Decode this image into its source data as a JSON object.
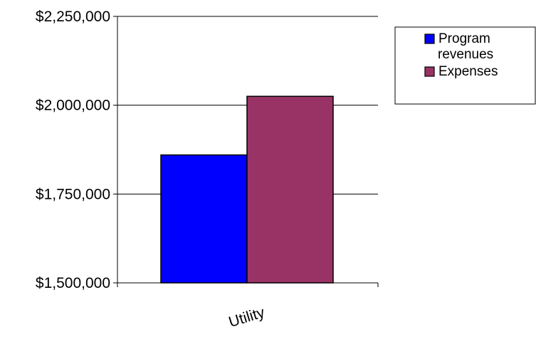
{
  "chart_data": {
    "type": "bar",
    "categories": [
      "Utility"
    ],
    "series": [
      {
        "name": "Program revenues",
        "values": [
          1860000
        ],
        "color": "#0000ff"
      },
      {
        "name": "Expenses",
        "values": [
          2025000
        ],
        "color": "#993366"
      }
    ],
    "ylim": [
      1500000,
      2250000
    ],
    "yticks": [
      1500000,
      1750000,
      2000000,
      2250000
    ],
    "ytick_labels": [
      "$1,500,000",
      "$1,750,000",
      "$2,000,000",
      "$2,250,000"
    ],
    "grid": true,
    "legend_position": "right",
    "legend": [
      {
        "lines": [
          "Program",
          "revenues"
        ]
      },
      {
        "lines": [
          "Expenses"
        ]
      }
    ],
    "title": "",
    "xlabel": "",
    "ylabel": ""
  }
}
